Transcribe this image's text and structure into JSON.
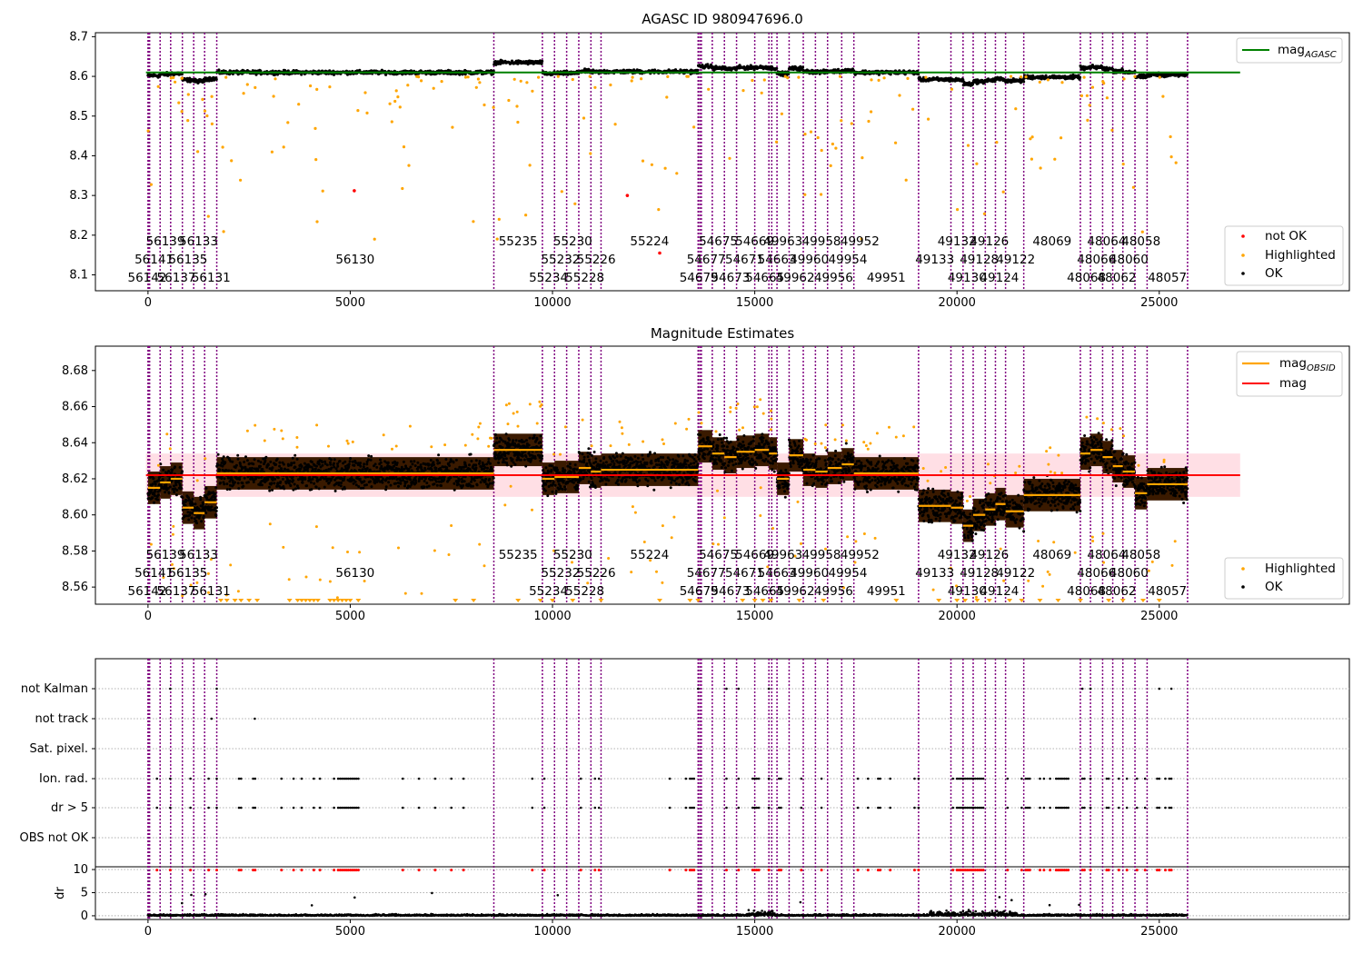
{
  "chart_data": [
    {
      "type": "scatter",
      "title": "AGASC ID 980947696.0",
      "xlim": [
        -1300,
        29700
      ],
      "ylim": [
        8.06,
        8.71
      ],
      "xticks": [
        "0",
        "5000",
        "10000",
        "15000",
        "20000",
        "25000"
      ],
      "yticks": [
        "8.1",
        "8.2",
        "8.3",
        "8.4",
        "8.5",
        "8.6",
        "8.7"
      ],
      "mag_agasc": 8.61,
      "legend_upper": {
        "text": "mag",
        "sub": "AGASC",
        "color": "#008000"
      },
      "legend_lower": [
        {
          "label": "not OK",
          "color": "#ff0000"
        },
        {
          "label": "Highlighted",
          "color": "#ffa500"
        },
        {
          "label": "OK",
          "color": "#000000"
        }
      ],
      "segments": [
        {
          "x0": 0,
          "x1": 300,
          "y": 8.615
        },
        {
          "x0": 300,
          "x1": 560,
          "y": 8.618
        },
        {
          "x0": 560,
          "x1": 850,
          "y": 8.62
        },
        {
          "x0": 850,
          "x1": 1130,
          "y": 8.604
        },
        {
          "x0": 1130,
          "x1": 1400,
          "y": 8.601
        },
        {
          "x0": 1400,
          "x1": 1700,
          "y": 8.607
        },
        {
          "x0": 1700,
          "x1": 8550,
          "y": 8.623
        },
        {
          "x0": 8550,
          "x1": 9750,
          "y": 8.636
        },
        {
          "x0": 9750,
          "x1": 10050,
          "y": 8.62
        },
        {
          "x0": 10050,
          "x1": 10350,
          "y": 8.621
        },
        {
          "x0": 10350,
          "x1": 10650,
          "y": 8.621
        },
        {
          "x0": 10650,
          "x1": 10950,
          "y": 8.626
        },
        {
          "x0": 10950,
          "x1": 11200,
          "y": 8.624
        },
        {
          "x0": 11200,
          "x1": 13600,
          "y": 8.625
        },
        {
          "x0": 13600,
          "x1": 13950,
          "y": 8.638
        },
        {
          "x0": 13950,
          "x1": 14250,
          "y": 8.634
        },
        {
          "x0": 14250,
          "x1": 14550,
          "y": 8.632
        },
        {
          "x0": 14550,
          "x1": 15000,
          "y": 8.635
        },
        {
          "x0": 15000,
          "x1": 15350,
          "y": 8.636
        },
        {
          "x0": 15350,
          "x1": 15550,
          "y": 8.634
        },
        {
          "x0": 15550,
          "x1": 15850,
          "y": 8.62
        },
        {
          "x0": 15850,
          "x1": 16200,
          "y": 8.633
        },
        {
          "x0": 16200,
          "x1": 16500,
          "y": 8.625
        },
        {
          "x0": 16500,
          "x1": 16800,
          "y": 8.624
        },
        {
          "x0": 16800,
          "x1": 17150,
          "y": 8.626
        },
        {
          "x0": 17150,
          "x1": 17450,
          "y": 8.628
        },
        {
          "x0": 17450,
          "x1": 19050,
          "y": 8.623
        },
        {
          "x0": 19050,
          "x1": 19850,
          "y": 8.605
        },
        {
          "x0": 19850,
          "x1": 20150,
          "y": 8.604
        },
        {
          "x0": 20150,
          "x1": 20400,
          "y": 8.594
        },
        {
          "x0": 20400,
          "x1": 20700,
          "y": 8.6
        },
        {
          "x0": 20700,
          "x1": 20950,
          "y": 8.603
        },
        {
          "x0": 20950,
          "x1": 21200,
          "y": 8.606
        },
        {
          "x0": 21200,
          "x1": 21650,
          "y": 8.602
        },
        {
          "x0": 21650,
          "x1": 23050,
          "y": 8.611
        },
        {
          "x0": 23050,
          "x1": 23300,
          "y": 8.634
        },
        {
          "x0": 23300,
          "x1": 23600,
          "y": 8.636
        },
        {
          "x0": 23600,
          "x1": 23850,
          "y": 8.632
        },
        {
          "x0": 23850,
          "x1": 24100,
          "y": 8.627
        },
        {
          "x0": 24100,
          "x1": 24400,
          "y": 8.624
        },
        {
          "x0": 24400,
          "x1": 24700,
          "y": 8.612
        },
        {
          "x0": 24700,
          "x1": 25700,
          "y": 8.617
        }
      ],
      "obsid_lines": [
        0,
        20,
        40,
        300,
        560,
        850,
        1130,
        1400,
        1700,
        8550,
        9750,
        10050,
        10350,
        10650,
        10950,
        11200,
        13600,
        13640,
        13680,
        13950,
        14250,
        14550,
        15000,
        15350,
        15420,
        15550,
        15850,
        16200,
        16500,
        16800,
        17150,
        17450,
        19050,
        19850,
        20150,
        20400,
        20700,
        20950,
        21200,
        21650,
        23050,
        23300,
        23600,
        23850,
        24100,
        24400,
        24700,
        25700
      ],
      "obsid_labels": [
        {
          "text": "56139",
          "x": 430,
          "row": 0
        },
        {
          "text": "56133",
          "x": 1250,
          "row": 0
        },
        {
          "text": "56141",
          "x": 150,
          "row": 1
        },
        {
          "text": "56135",
          "x": 990,
          "row": 1
        },
        {
          "text": "56142",
          "x": -20,
          "row": 2
        },
        {
          "text": "56137",
          "x": 700,
          "row": 2
        },
        {
          "text": "56131",
          "x": 1560,
          "row": 2
        },
        {
          "text": "56130",
          "x": 5120,
          "row": 1
        },
        {
          "text": "55235",
          "x": 9150,
          "row": 0
        },
        {
          "text": "55230",
          "x": 10500,
          "row": 0
        },
        {
          "text": "55232",
          "x": 10200,
          "row": 1
        },
        {
          "text": "55226",
          "x": 11080,
          "row": 1
        },
        {
          "text": "55234",
          "x": 9900,
          "row": 2
        },
        {
          "text": "55228",
          "x": 10800,
          "row": 2
        },
        {
          "text": "55224",
          "x": 12400,
          "row": 0
        },
        {
          "text": "54675",
          "x": 14100,
          "row": 0
        },
        {
          "text": "54669",
          "x": 15000,
          "row": 0
        },
        {
          "text": "49963",
          "x": 15700,
          "row": 0
        },
        {
          "text": "49958",
          "x": 16650,
          "row": 0
        },
        {
          "text": "49952",
          "x": 17600,
          "row": 0
        },
        {
          "text": "54677",
          "x": 13800,
          "row": 1
        },
        {
          "text": "54671",
          "x": 14750,
          "row": 1
        },
        {
          "text": "54663",
          "x": 15550,
          "row": 1
        },
        {
          "text": "49960",
          "x": 16350,
          "row": 1
        },
        {
          "text": "49954",
          "x": 17300,
          "row": 1
        },
        {
          "text": "54679",
          "x": 13620,
          "row": 2
        },
        {
          "text": "54673",
          "x": 14400,
          "row": 2
        },
        {
          "text": "54665",
          "x": 15250,
          "row": 2
        },
        {
          "text": "49962",
          "x": 16000,
          "row": 2
        },
        {
          "text": "49956",
          "x": 16950,
          "row": 2
        },
        {
          "text": "49951",
          "x": 18250,
          "row": 2
        },
        {
          "text": "49132",
          "x": 20000,
          "row": 0
        },
        {
          "text": "49126",
          "x": 20800,
          "row": 0
        },
        {
          "text": "49133",
          "x": 19450,
          "row": 1
        },
        {
          "text": "49128",
          "x": 20550,
          "row": 1
        },
        {
          "text": "49122",
          "x": 21450,
          "row": 1
        },
        {
          "text": "49130",
          "x": 20250,
          "row": 2
        },
        {
          "text": "49124",
          "x": 21050,
          "row": 2
        },
        {
          "text": "48069",
          "x": 22350,
          "row": 0
        },
        {
          "text": "48064",
          "x": 23700,
          "row": 0
        },
        {
          "text": "48058",
          "x": 24550,
          "row": 0
        },
        {
          "text": "48066",
          "x": 23450,
          "row": 1
        },
        {
          "text": "48060",
          "x": 24250,
          "row": 1
        },
        {
          "text": "48068",
          "x": 23200,
          "row": 2
        },
        {
          "text": "48062",
          "x": 23950,
          "row": 2
        },
        {
          "text": "48057",
          "x": 25200,
          "row": 2
        }
      ]
    },
    {
      "type": "scatter",
      "title": "Magnitude Estimates",
      "xlim": [
        -1300,
        29700
      ],
      "ylim": [
        8.5505,
        8.6935
      ],
      "xticks": [
        "0",
        "5000",
        "10000",
        "15000",
        "20000",
        "25000"
      ],
      "yticks": [
        "8.56",
        "8.58",
        "8.60",
        "8.62",
        "8.64",
        "8.66",
        "8.68"
      ],
      "mag_mean": 8.622,
      "mag_band": [
        8.61,
        8.634
      ],
      "legend_upper": [
        {
          "text": "mag",
          "sub": "OBSID",
          "color": "#ffa500"
        },
        {
          "text": "mag",
          "sub": "",
          "color": "#ff0000"
        }
      ],
      "legend_lower": [
        {
          "label": "Highlighted",
          "color": "#ffa500"
        },
        {
          "label": "OK",
          "color": "#000000"
        }
      ]
    },
    {
      "type": "scatter",
      "title": "",
      "xlim": [
        -1300,
        29700
      ],
      "xticks": [
        "0",
        "5000",
        "10000",
        "15000",
        "20000",
        "25000"
      ],
      "flag_rows": [
        "not Kalman",
        "not track",
        "Sat. pixel.",
        "Ion. rad.",
        "dr > 5",
        "OBS not OK"
      ],
      "dr_yticks": [
        "0",
        "5",
        "10"
      ],
      "dr_ylabel": "dr",
      "dr_ylim": [
        -0.8,
        10.6
      ]
    }
  ]
}
